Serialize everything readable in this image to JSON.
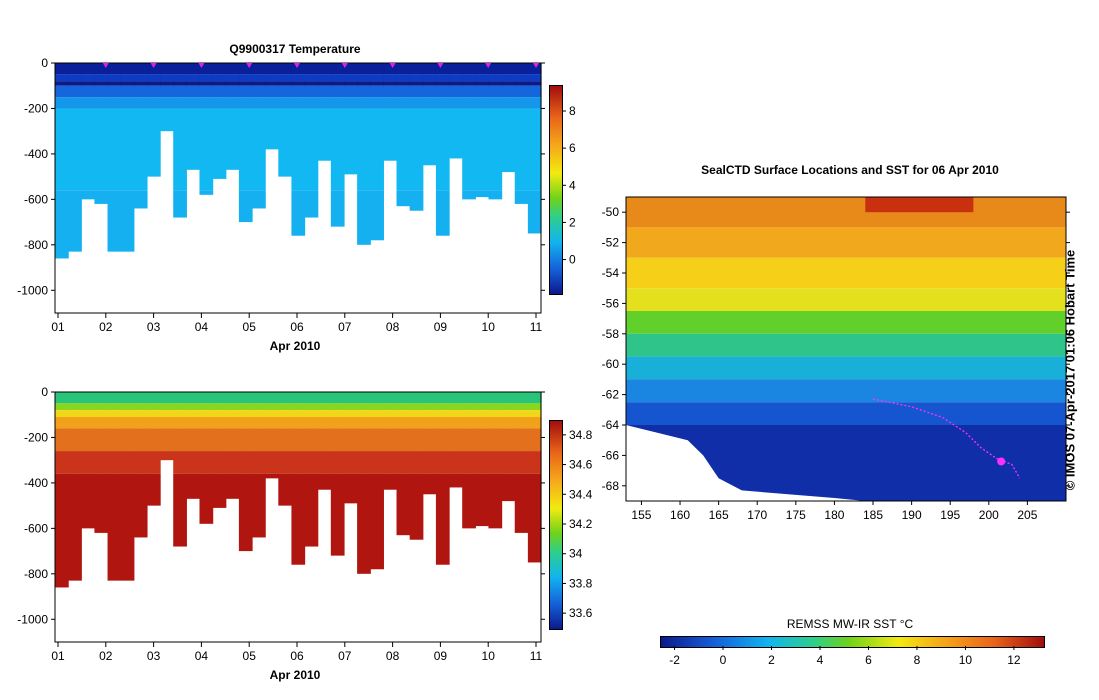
{
  "chart_data": [
    {
      "type": "heatmap",
      "title": "Q9900317  Temperature",
      "xlabel": "Apr 2010",
      "x_ticks": [
        "01",
        "02",
        "03",
        "04",
        "05",
        "06",
        "07",
        "08",
        "09",
        "10",
        "11"
      ],
      "y_ticks": [
        "0",
        "-200",
        "-400",
        "-600",
        "-800",
        "-1000"
      ],
      "ylim": [
        -1100,
        0
      ],
      "colorbar_ticks": [
        "0",
        "2",
        "4",
        "6",
        "8"
      ],
      "colorbar_range": [
        -1.8,
        9.4
      ],
      "profile_depths": [
        -860,
        -830,
        -600,
        -620,
        -830,
        -830,
        -640,
        -500,
        -300,
        -680,
        -470,
        -580,
        -510,
        -470,
        -700,
        -640,
        -380,
        -500,
        -760,
        -680,
        -430,
        -720,
        -490,
        -800,
        -780,
        -430,
        -630,
        -650,
        -450,
        -760,
        -420,
        -600,
        -590,
        -600,
        -480,
        -620,
        -750
      ],
      "surface_markers": [
        "02",
        "03",
        "04",
        "05",
        "06",
        "07",
        "08",
        "09",
        "10",
        "11"
      ]
    },
    {
      "type": "heatmap",
      "title": "",
      "xlabel": "Apr 2010",
      "x_ticks": [
        "01",
        "02",
        "03",
        "04",
        "05",
        "06",
        "07",
        "08",
        "09",
        "10",
        "11"
      ],
      "y_ticks": [
        "0",
        "-200",
        "-400",
        "-600",
        "-800",
        "-1000"
      ],
      "ylim": [
        -1100,
        0
      ],
      "colorbar_ticks": [
        "33.6",
        "33.8",
        "34",
        "34.2",
        "34.4",
        "34.6",
        "34.8"
      ],
      "colorbar_range": [
        33.5,
        34.9
      ],
      "profile_depths": [
        -860,
        -830,
        -600,
        -620,
        -830,
        -830,
        -640,
        -500,
        -300,
        -680,
        -470,
        -580,
        -510,
        -470,
        -700,
        -640,
        -380,
        -500,
        -760,
        -680,
        -430,
        -720,
        -490,
        -800,
        -780,
        -430,
        -630,
        -650,
        -450,
        -760,
        -420,
        -600,
        -590,
        -600,
        -480,
        -620,
        -750
      ]
    },
    {
      "type": "heatmap",
      "title": "SealCTD Surface Locations and SST for 06 Apr 2010",
      "x_ticks": [
        "155",
        "160",
        "165",
        "170",
        "175",
        "180",
        "185",
        "190",
        "195",
        "200",
        "205"
      ],
      "y_ticks": [
        "-50",
        "-52",
        "-54",
        "-56",
        "-58",
        "-60",
        "-62",
        "-64",
        "-66",
        "-68"
      ],
      "xlim": [
        153,
        210
      ],
      "ylim": [
        -69,
        -49
      ],
      "colorbar_label": "REMSS MW-IR SST °C",
      "colorbar_ticks": [
        "-2",
        "0",
        "2",
        "4",
        "6",
        "8",
        "10",
        "12"
      ],
      "colorbar_range": [
        -2.6,
        13.2
      ],
      "track_lon": [
        185,
        190,
        194,
        197,
        199,
        201,
        202,
        203,
        204
      ],
      "track_lat": [
        -62.3,
        -62.8,
        -63.5,
        -64.5,
        -65.5,
        -66.2,
        -66.4,
        -66.6,
        -67.5
      ],
      "current_position": {
        "lon": 201.6,
        "lat": -66.4
      }
    }
  ],
  "credit": "© IMOS 07-Apr-2017 01:06 Hobart Time"
}
